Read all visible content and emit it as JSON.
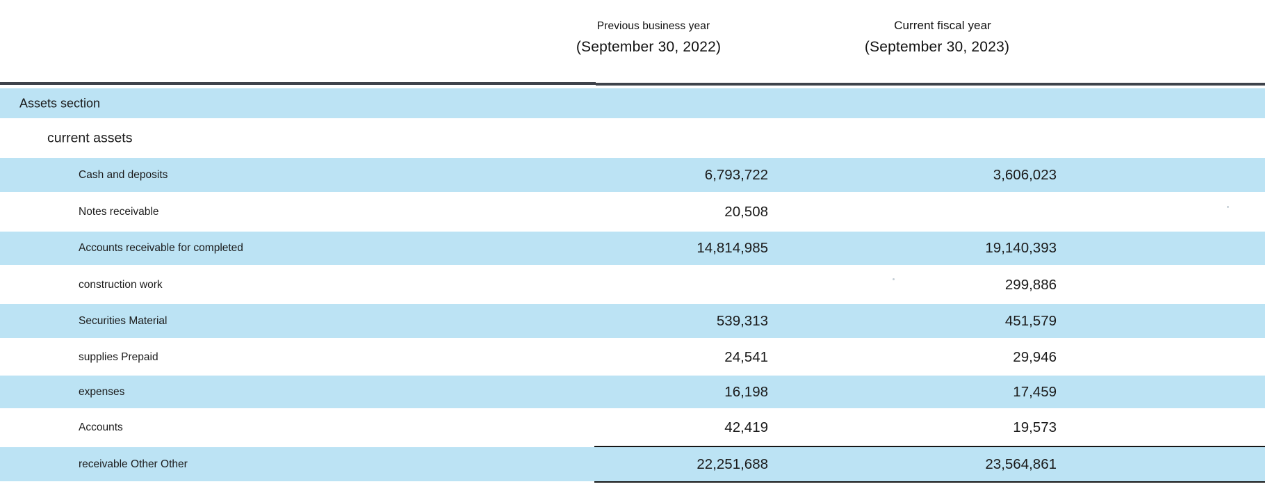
{
  "columns": {
    "prev": {
      "line1": "Previous business year",
      "line2": "(September 30, 2022)"
    },
    "curr": {
      "line1": "Current fiscal year",
      "line2": "(September 30, 2023)"
    }
  },
  "rows": [
    {
      "label": "Assets section",
      "indent": 0,
      "prev": "",
      "curr": "",
      "shaded": true,
      "total": false
    },
    {
      "label": "current assets",
      "indent": 1,
      "prev": "",
      "curr": "",
      "shaded": false,
      "total": false
    },
    {
      "label": "Cash and deposits",
      "indent": 2,
      "prev": "6,793,722",
      "curr": "3,606,023",
      "shaded": true,
      "total": false
    },
    {
      "label": "Notes receivable",
      "indent": 2,
      "prev": "20,508",
      "curr": "",
      "shaded": false,
      "total": false
    },
    {
      "label": "Accounts receivable for completed",
      "indent": 2,
      "prev": "14,814,985",
      "curr": "19,140,393",
      "shaded": true,
      "total": false
    },
    {
      "label": "construction work",
      "indent": 2,
      "prev": "",
      "curr": "299,886",
      "shaded": false,
      "total": false
    },
    {
      "label": "Securities Material",
      "indent": 2,
      "prev": "539,313",
      "curr": "451,579",
      "shaded": true,
      "total": false
    },
    {
      "label": "supplies Prepaid",
      "indent": 2,
      "prev": "24,541",
      "curr": "29,946",
      "shaded": false,
      "total": false
    },
    {
      "label": "expenses",
      "indent": 2,
      "prev": "16,198",
      "curr": "17,459",
      "shaded": true,
      "total": false
    },
    {
      "label": "Accounts",
      "indent": 2,
      "prev": "42,419",
      "curr": "19,573",
      "shaded": false,
      "total": false
    },
    {
      "label": "receivable Other Other",
      "indent": 2,
      "prev": "22,251,688",
      "curr": "23,564,861",
      "shaded": true,
      "total": true
    }
  ],
  "colors": {
    "row_shade": "#bce3f4",
    "rule_dark": "#3e434b",
    "rule_black": "#161616"
  }
}
